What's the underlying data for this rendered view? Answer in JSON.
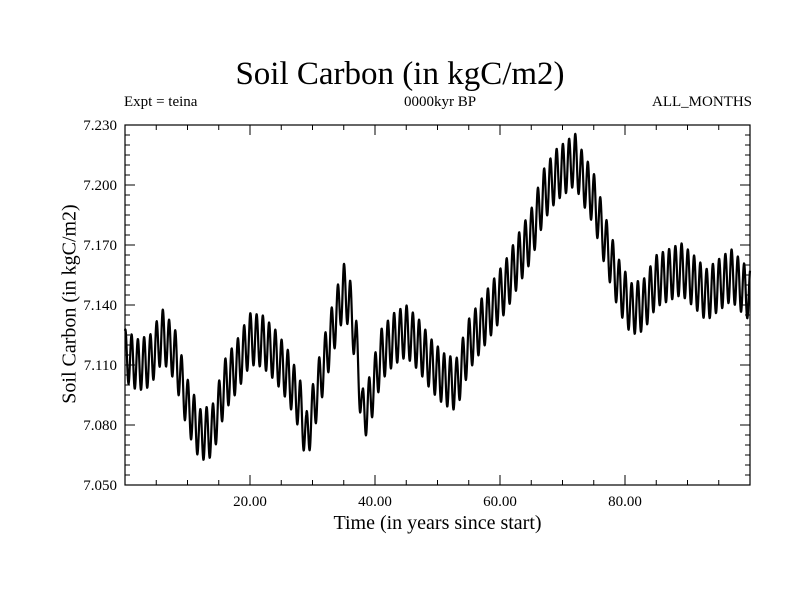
{
  "chart_data": {
    "type": "line",
    "title": "Soil Carbon (in kgC/m2)",
    "subtitle_left": "Expt = teina",
    "subtitle_center": "0000kyr BP",
    "subtitle_right": "ALL_MONTHS",
    "xlabel": "Time (in years since start)",
    "ylabel": "Soil Carbon (in kgC/m2)",
    "xlim": [
      0,
      100
    ],
    "ylim": [
      7.05,
      7.23
    ],
    "xticks": [
      20,
      40,
      60,
      80
    ],
    "xtick_labels": [
      "20.00",
      "40.00",
      "60.00",
      "80.00"
    ],
    "yticks": [
      7.05,
      7.08,
      7.11,
      7.14,
      7.17,
      7.2,
      7.23
    ],
    "ytick_labels": [
      "7.050",
      "7.080",
      "7.110",
      "7.140",
      "7.170",
      "7.200",
      "7.230"
    ],
    "seasonal_amplitude": 0.013,
    "series": [
      {
        "name": "Soil Carbon",
        "x": [
          0,
          2,
          4,
          6,
          8,
          10,
          12,
          14,
          16,
          18,
          20,
          22,
          24,
          26,
          28,
          29,
          31,
          33,
          35,
          36,
          37,
          38,
          39,
          41,
          43,
          45,
          47,
          49,
          51,
          53,
          55,
          57,
          59,
          61,
          63,
          65,
          67,
          69,
          71,
          72,
          73,
          75,
          77,
          79,
          81,
          83,
          85,
          87,
          89,
          91,
          93,
          95,
          97,
          99,
          100
        ],
        "y": [
          7.115,
          7.11,
          7.112,
          7.125,
          7.115,
          7.09,
          7.075,
          7.077,
          7.1,
          7.11,
          7.123,
          7.122,
          7.115,
          7.105,
          7.09,
          7.073,
          7.1,
          7.125,
          7.148,
          7.14,
          7.12,
          7.085,
          7.09,
          7.115,
          7.123,
          7.127,
          7.12,
          7.11,
          7.103,
          7.1,
          7.12,
          7.13,
          7.14,
          7.15,
          7.163,
          7.175,
          7.195,
          7.205,
          7.21,
          7.213,
          7.205,
          7.193,
          7.17,
          7.15,
          7.138,
          7.14,
          7.152,
          7.155,
          7.158,
          7.152,
          7.145,
          7.15,
          7.155,
          7.148,
          7.145
        ]
      }
    ]
  }
}
